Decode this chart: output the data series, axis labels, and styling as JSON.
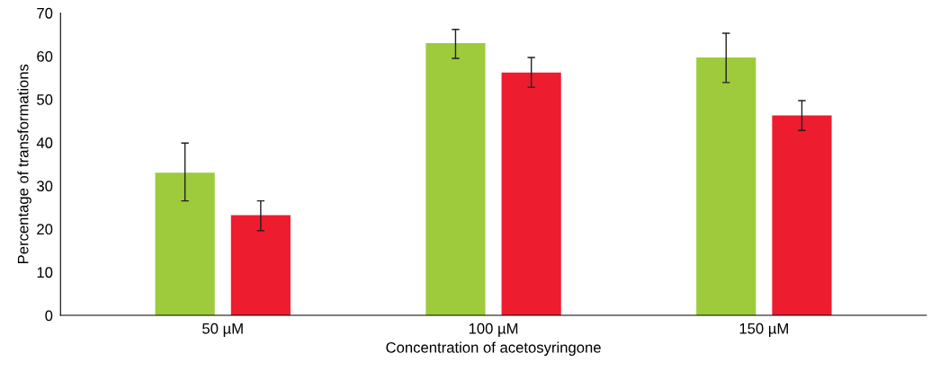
{
  "chart_data": {
    "type": "bar",
    "xlabel": "Concentration of acetosyringone",
    "ylabel": "Percentage of transformations",
    "categories": [
      "50 µM",
      "100 µM",
      "150 µM"
    ],
    "series": [
      {
        "color": "#9dcb3c",
        "values": [
          33.0,
          63.0,
          59.7
        ],
        "errors": [
          [
            26.5,
            39.9
          ],
          [
            59.5,
            66.2
          ],
          [
            53.9,
            65.3
          ]
        ]
      },
      {
        "color": "#ed1c2e",
        "values": [
          23.2,
          56.2,
          46.3
        ],
        "errors": [
          [
            19.6,
            26.5
          ],
          [
            52.8,
            59.7
          ],
          [
            42.8,
            49.7
          ]
        ]
      }
    ],
    "ylim": [
      0,
      70
    ],
    "yticks": [
      0,
      10,
      20,
      30,
      40,
      50,
      60,
      70
    ],
    "grid": false,
    "legend": false
  }
}
